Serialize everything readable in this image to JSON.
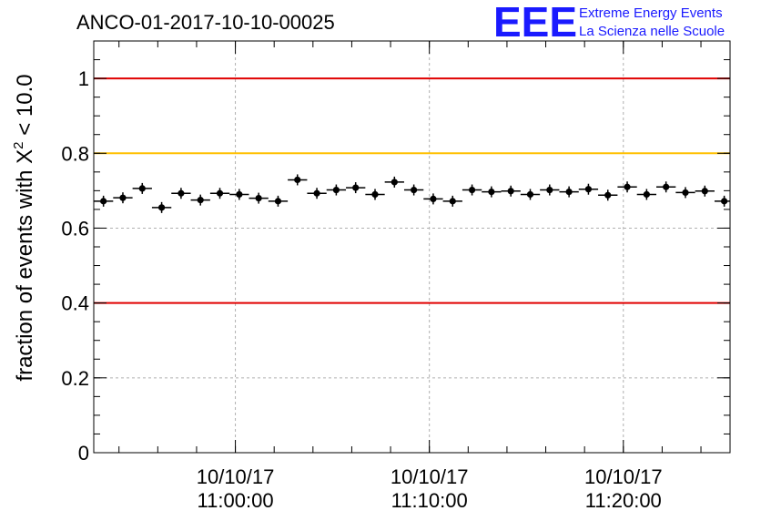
{
  "title": "ANCO-01-2017-10-10-00025",
  "logo": {
    "mark": "EEE",
    "line1": "Extreme Energy Events",
    "line2": "La Scienza nelle Scuole",
    "color": "#1a1aff"
  },
  "chart_data": {
    "type": "scatter",
    "title": "ANCO-01-2017-10-10-00025",
    "ylabel_main": "fraction of events with X",
    "ylabel_sup": "2",
    "ylabel_tail": " < 10.0",
    "ylim": [
      0,
      1.1
    ],
    "y_ticks": [
      {
        "value": 0,
        "label": "0"
      },
      {
        "value": 0.2,
        "label": "0.2"
      },
      {
        "value": 0.4,
        "label": "0.4"
      },
      {
        "value": 0.6,
        "label": "0.6"
      },
      {
        "value": 0.8,
        "label": "0.8"
      },
      {
        "value": 1,
        "label": "1"
      }
    ],
    "x_range_minutes": [
      -7.3,
      25.5
    ],
    "x_ticks": [
      {
        "minutes": 0,
        "date": "10/10/17",
        "time": "11:00:00"
      },
      {
        "minutes": 10,
        "date": "10/10/17",
        "time": "11:10:00"
      },
      {
        "minutes": 20,
        "date": "10/10/17",
        "time": "11:20:00"
      }
    ],
    "grid": true,
    "reference_lines": [
      {
        "y": 1.0,
        "color": "#e00000"
      },
      {
        "y": 0.8,
        "color": "#ffc000"
      },
      {
        "y": 0.4,
        "color": "#e00000"
      }
    ],
    "series": [
      {
        "bin_width_minutes": 1,
        "x_minutes": [
          -6.8,
          -5.8,
          -4.8,
          -3.8,
          -2.8,
          -1.8,
          -0.8,
          0.2,
          1.2,
          2.2,
          3.2,
          4.2,
          5.2,
          6.2,
          7.2,
          8.2,
          9.2,
          10.2,
          11.2,
          12.2,
          13.2,
          14.2,
          15.2,
          16.2,
          17.2,
          18.2,
          19.2,
          20.2,
          21.2,
          22.2,
          23.2,
          24.2,
          25.2
        ],
        "y": [
          0.672,
          0.681,
          0.706,
          0.655,
          0.693,
          0.675,
          0.693,
          0.69,
          0.68,
          0.672,
          0.729,
          0.693,
          0.702,
          0.708,
          0.69,
          0.723,
          0.702,
          0.678,
          0.672,
          0.702,
          0.697,
          0.699,
          0.69,
          0.702,
          0.697,
          0.704,
          0.688,
          0.71,
          0.69,
          0.71,
          0.695,
          0.699,
          0.672
        ],
        "color": "#000000"
      }
    ]
  }
}
